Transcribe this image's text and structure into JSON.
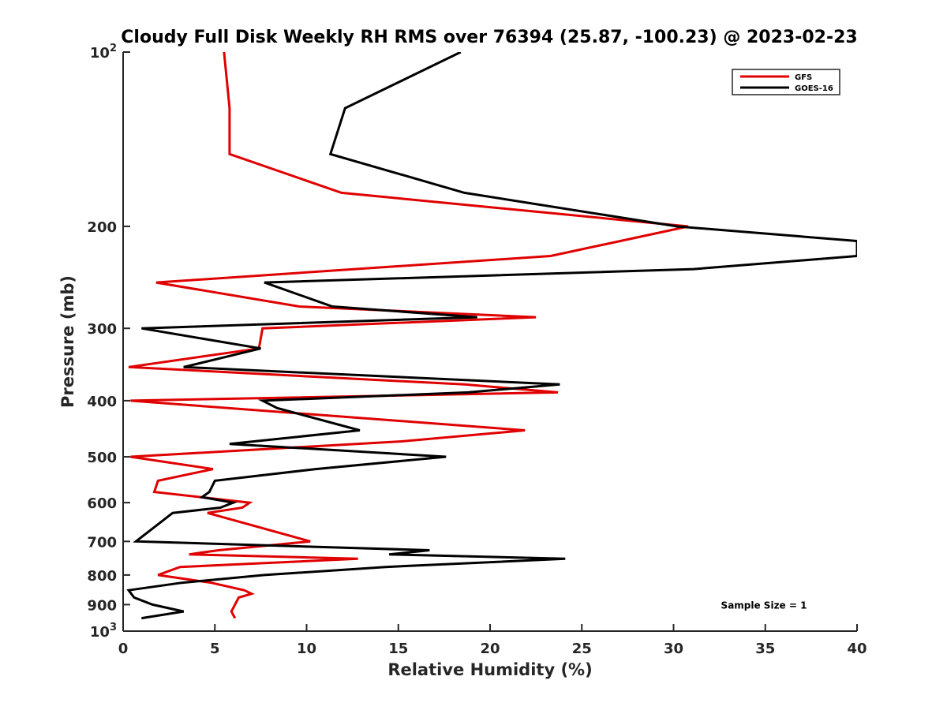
{
  "chart_data": {
    "type": "line",
    "title": "Cloudy Full Disk Weekly RH RMS over 76394 (25.87, -100.23) @ 2023-02-23",
    "xlabel": "Relative Humidity (%)",
    "ylabel": "Pressure (mb)",
    "xlim": [
      0,
      40
    ],
    "ylim": [
      100,
      1000
    ],
    "yscale": "log",
    "y_reversed": true,
    "grid": false,
    "legend_position": "top-right",
    "x_ticks": [
      "0",
      "5",
      "10",
      "15",
      "20",
      "25",
      "30",
      "35",
      "40"
    ],
    "y_ticks": [
      {
        "value": 100,
        "base": "10",
        "exp": "2"
      },
      {
        "value": 200,
        "label": "200"
      },
      {
        "value": 300,
        "label": "300"
      },
      {
        "value": 400,
        "label": "400"
      },
      {
        "value": 500,
        "label": "500"
      },
      {
        "value": 600,
        "label": "600"
      },
      {
        "value": 700,
        "label": "700"
      },
      {
        "value": 800,
        "label": "800"
      },
      {
        "value": 900,
        "label": "900"
      },
      {
        "value": 1000,
        "base": "10",
        "exp": "3"
      }
    ],
    "annotation": "Sample Size = 1",
    "series": [
      {
        "name": "GFS",
        "color": "#e00000",
        "points": [
          [
            5.5,
            100
          ],
          [
            5.8,
            125
          ],
          [
            5.8,
            150
          ],
          [
            11.9,
            175
          ],
          [
            30.8,
            200
          ],
          [
            23.3,
            225
          ],
          [
            1.8,
            250
          ],
          [
            9.6,
            275
          ],
          [
            22.5,
            287
          ],
          [
            7.6,
            300
          ],
          [
            7.4,
            325
          ],
          [
            0.3,
            350
          ],
          [
            18.6,
            375
          ],
          [
            23.7,
            387
          ],
          [
            0.4,
            400
          ],
          [
            21.9,
            450
          ],
          [
            15.3,
            470
          ],
          [
            0.4,
            500
          ],
          [
            4.9,
            525
          ],
          [
            1.9,
            550
          ],
          [
            1.7,
            575
          ],
          [
            6.9,
            600
          ],
          [
            6.5,
            612
          ],
          [
            4.6,
            625
          ],
          [
            10.2,
            700
          ],
          [
            5.2,
            725
          ],
          [
            3.6,
            737
          ],
          [
            12.8,
            750
          ],
          [
            3.1,
            775
          ],
          [
            1.9,
            800
          ],
          [
            4.8,
            825
          ],
          [
            6.6,
            850
          ],
          [
            7.0,
            862
          ],
          [
            6.3,
            875
          ],
          [
            5.9,
            925
          ],
          [
            6.1,
            950
          ]
        ]
      },
      {
        "name": "GOES-16",
        "color": "#000000",
        "points": [
          [
            18.4,
            100
          ],
          [
            12.1,
            125
          ],
          [
            11.3,
            150
          ],
          [
            18.6,
            175
          ],
          [
            30.2,
            200
          ],
          [
            40.0,
            212
          ],
          [
            40.0,
            225
          ],
          [
            31.1,
            237
          ],
          [
            7.7,
            250
          ],
          [
            11.4,
            275
          ],
          [
            19.3,
            287
          ],
          [
            1.0,
            300
          ],
          [
            7.5,
            325
          ],
          [
            3.3,
            350
          ],
          [
            23.8,
            375
          ],
          [
            18.8,
            387
          ],
          [
            7.6,
            400
          ],
          [
            8.4,
            412
          ],
          [
            12.9,
            450
          ],
          [
            5.8,
            475
          ],
          [
            17.6,
            500
          ],
          [
            10.5,
            525
          ],
          [
            5.0,
            550
          ],
          [
            4.7,
            575
          ],
          [
            4.3,
            587
          ],
          [
            6.0,
            600
          ],
          [
            5.3,
            612
          ],
          [
            2.7,
            625
          ],
          [
            0.7,
            700
          ],
          [
            16.7,
            725
          ],
          [
            14.5,
            737
          ],
          [
            24.1,
            750
          ],
          [
            14.3,
            775
          ],
          [
            7.7,
            800
          ],
          [
            3.2,
            825
          ],
          [
            0.3,
            850
          ],
          [
            0.6,
            875
          ],
          [
            1.6,
            900
          ],
          [
            3.3,
            925
          ],
          [
            1.0,
            950
          ]
        ]
      }
    ]
  }
}
